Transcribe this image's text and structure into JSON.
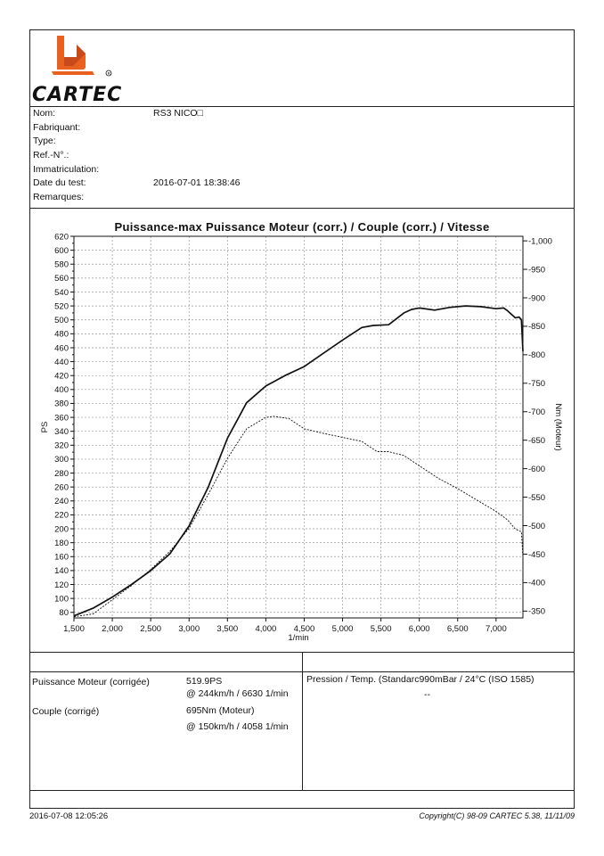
{
  "brand": "CARTEC",
  "info": [
    {
      "label": "Nom:",
      "value": "RS3 NICO□"
    },
    {
      "label": "Fabriquant:",
      "value": ""
    },
    {
      "label": "Type:",
      "value": ""
    },
    {
      "label": "Ref.-N°.:",
      "value": ""
    },
    {
      "label": "Immatriculation:",
      "value": ""
    },
    {
      "label": "Date du test:",
      "value": "2016-07-01 18:38:46"
    },
    {
      "label": "Remarques:",
      "value": ""
    }
  ],
  "chart_data": {
    "type": "line",
    "title": "Puissance-max Puissance Moteur (corr.) / Couple (corr.) / Vitesse",
    "xlabel": "1/min",
    "ylabel": "PS",
    "ylabel_right": "Nm (Moteur)",
    "xlim": [
      1500,
      7350
    ],
    "ylim": [
      72,
      620
    ],
    "ylim_right": [
      338,
      1008
    ],
    "x_ticks": [
      1500,
      2000,
      2500,
      3000,
      3500,
      4000,
      4500,
      5000,
      5500,
      6000,
      6500,
      7000
    ],
    "x_tick_labels": [
      "1,500",
      "2,000",
      "2,500",
      "3,000",
      "3,500",
      "4,000",
      "4,500",
      "5,000",
      "5,500",
      "6,000",
      "6,500",
      "7,000"
    ],
    "y_ticks": [
      80,
      100,
      120,
      140,
      160,
      180,
      200,
      220,
      240,
      260,
      280,
      300,
      320,
      340,
      360,
      380,
      400,
      420,
      440,
      460,
      480,
      500,
      520,
      540,
      560,
      580,
      600,
      620
    ],
    "y_ticks_minor": [
      90,
      110,
      130,
      150,
      170,
      190,
      210,
      230,
      250,
      270,
      290,
      310,
      330,
      350,
      370,
      390,
      410,
      430,
      450,
      470,
      490,
      510,
      530,
      550,
      570,
      590,
      610
    ],
    "y_right_ticks": [
      350,
      400,
      450,
      500,
      550,
      600,
      650,
      700,
      750,
      800,
      850,
      900,
      950,
      1000
    ],
    "y_right_tick_labels": [
      "350",
      "400",
      "450",
      "500",
      "550",
      "600",
      "650",
      "700",
      "750",
      "800",
      "850",
      "900",
      "950",
      "1,000"
    ],
    "grid": true,
    "series": [
      {
        "name": "Puissance Moteur (corr.)",
        "axis": "left",
        "style": "solid",
        "x": [
          1500,
          1750,
          2000,
          2250,
          2500,
          2750,
          3000,
          3250,
          3500,
          3750,
          4000,
          4250,
          4500,
          4750,
          5000,
          5250,
          5400,
          5600,
          5800,
          5900,
          6000,
          6200,
          6400,
          6600,
          6800,
          7000,
          7100,
          7150,
          7250,
          7300,
          7330,
          7350
        ],
        "y": [
          75,
          86,
          102,
          120,
          140,
          164,
          204,
          260,
          330,
          381,
          405,
          420,
          433,
          452,
          471,
          489,
          492,
          493,
          510,
          515,
          517,
          514,
          518,
          520,
          519,
          516,
          517,
          513,
          503,
          504,
          500,
          455
        ]
      },
      {
        "name": "Couple (corr.)",
        "axis": "right",
        "style": "dashed",
        "x": [
          1500,
          1750,
          2000,
          2250,
          2500,
          2750,
          3000,
          3250,
          3500,
          3750,
          4000,
          4100,
          4300,
          4500,
          4750,
          5000,
          5250,
          5450,
          5600,
          5800,
          6000,
          6250,
          6500,
          6750,
          7000,
          7150,
          7250,
          7330,
          7350
        ],
        "y": [
          340,
          345,
          370,
          395,
          423,
          455,
          495,
          555,
          618,
          670,
          690,
          692,
          688,
          670,
          662,
          655,
          648,
          630,
          630,
          623,
          605,
          583,
          565,
          545,
          525,
          510,
          494,
          489,
          445
        ]
      }
    ]
  },
  "results": {
    "power_label": "Puissance Moteur (corrigée)",
    "power_value": "519.9PS",
    "power_detail": "@ 244km/h / 6630 1/min",
    "torque_label": "Couple (corrigé)",
    "torque_value": "695Nm (Moteur)",
    "torque_detail": "@ 150km/h / 4058 1/min",
    "pressure_text": "Pression / Temp. (Standarc990mBar / 24°C   (ISO 1585)",
    "pressure_extra": "--"
  },
  "footer": {
    "date": "2016-07-08 12:05:26",
    "copyright": "Copyright(C) 98-09 CARTEC 5.38, 11/11/09"
  }
}
